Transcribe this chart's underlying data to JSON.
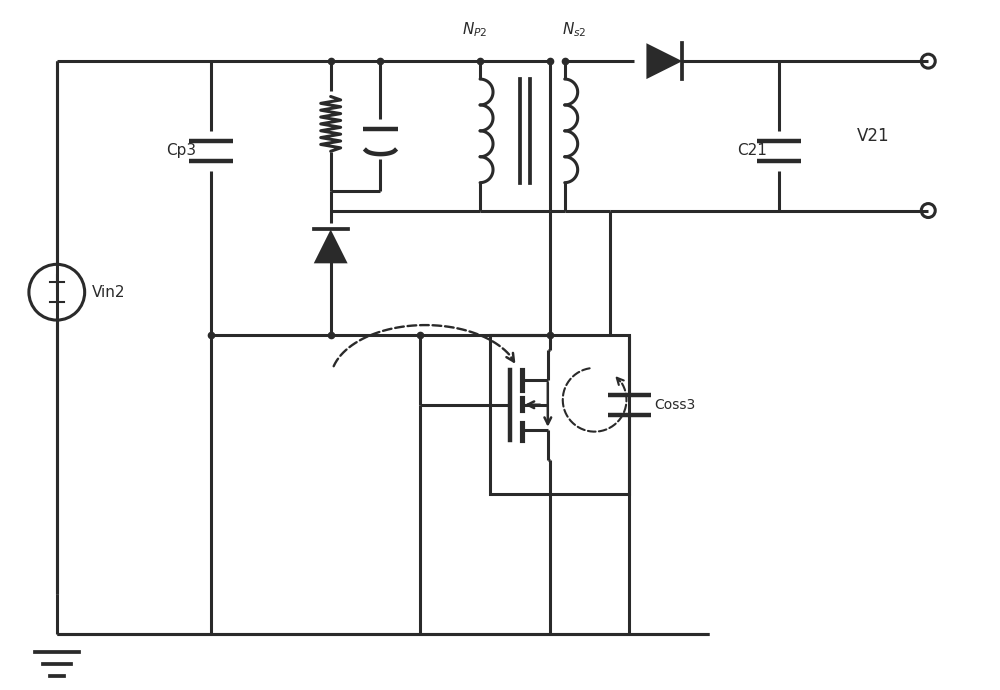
{
  "bg_color": "#ffffff",
  "line_color": "#2a2a2a",
  "line_width": 2.2,
  "fig_w": 10.0,
  "fig_h": 6.9,
  "xlim": [
    0,
    10
  ],
  "ylim": [
    0,
    6.9
  ]
}
